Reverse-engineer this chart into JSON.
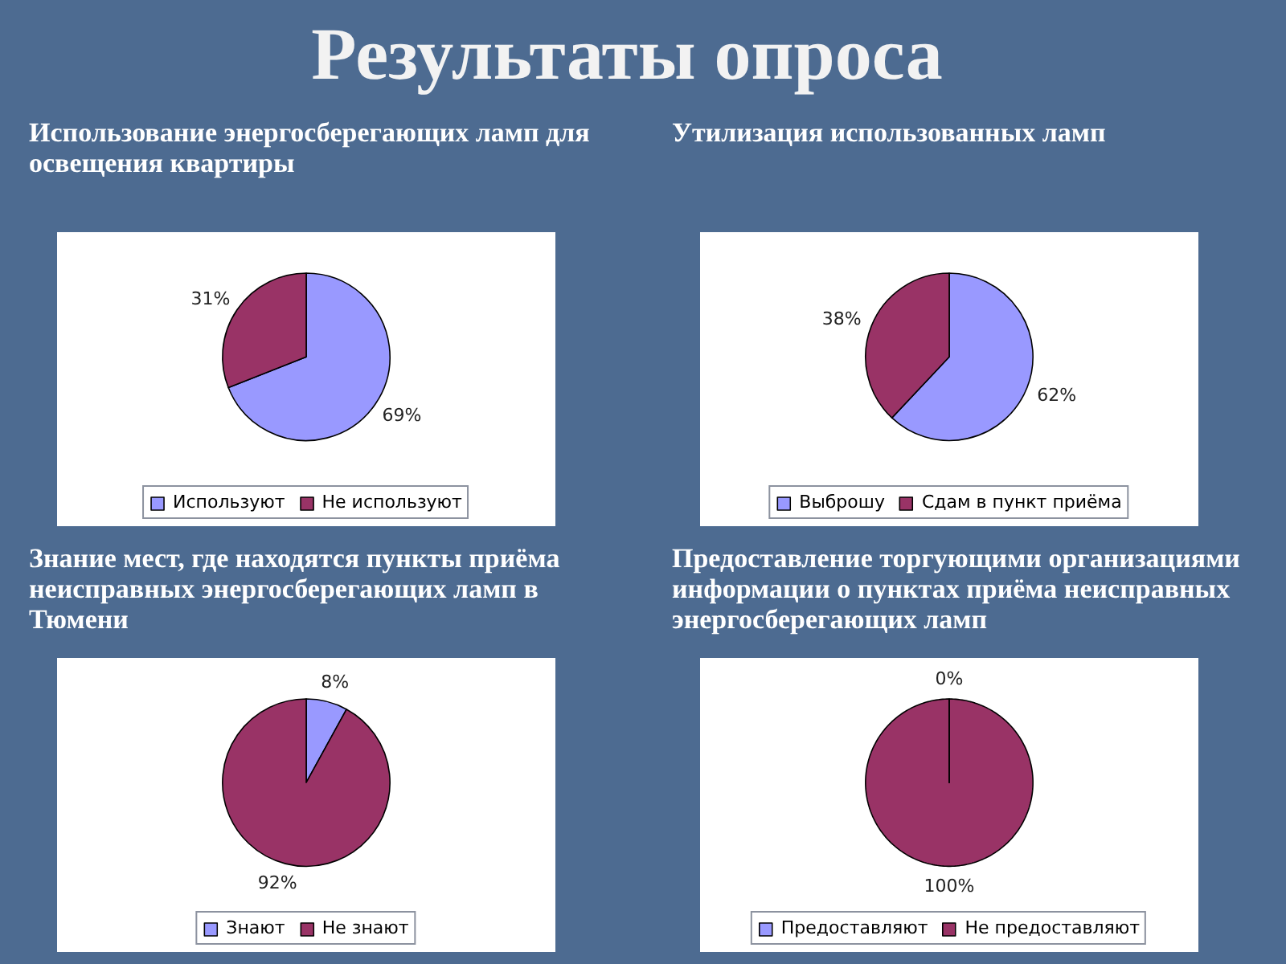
{
  "chart_data": [
    {
      "type": "pie",
      "title": "Использование энергосберегающих ламп для освещения квартиры",
      "categories": [
        "Используют",
        "Не используют"
      ],
      "values": [
        69,
        31
      ],
      "colors": [
        "#9999ff",
        "#993366"
      ],
      "value_labels": [
        "69%",
        "31%"
      ],
      "legend": "bottom",
      "annotations": [
        "Результаты опроса"
      ]
    },
    {
      "type": "pie",
      "title": "Утилизация использованных ламп",
      "categories": [
        "Выброшу",
        "Сдам в пункт приёма"
      ],
      "values": [
        62,
        38
      ],
      "colors": [
        "#9999ff",
        "#993366"
      ],
      "value_labels": [
        "62%",
        "38%"
      ],
      "legend": "bottom"
    },
    {
      "type": "pie",
      "title": "Знание мест, где находятся пункты приёма неисправных энергосберегающих ламп в Тюмени",
      "categories": [
        "Знают",
        "Не знают"
      ],
      "values": [
        8,
        92
      ],
      "colors": [
        "#9999ff",
        "#993366"
      ],
      "value_labels": [
        "8%",
        "92%"
      ],
      "legend": "bottom"
    },
    {
      "type": "pie",
      "title": "Предоставление торгующими организациями информации о пунктах приёма неисправных энергосберегающих ламп",
      "categories": [
        "Предоставляют",
        "Не предоставляют"
      ],
      "values": [
        0,
        100
      ],
      "colors": [
        "#9999ff",
        "#993366"
      ],
      "value_labels": [
        "0%",
        "100%"
      ],
      "legend": "bottom"
    }
  ]
}
